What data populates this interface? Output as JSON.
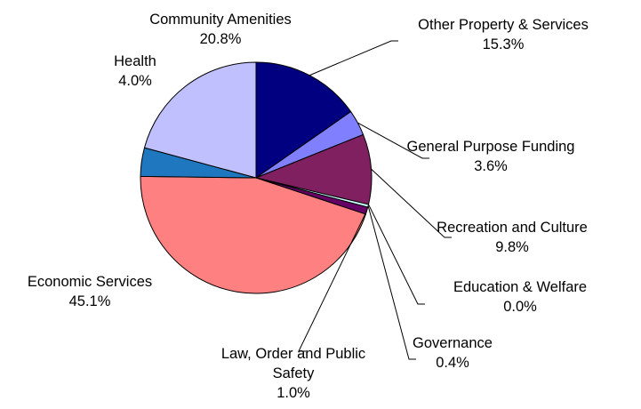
{
  "chart_data": {
    "type": "pie",
    "title": "",
    "slices": [
      {
        "label": "Other Property & Services",
        "value": 15.3,
        "value_label": "15.3%",
        "color": "#000080"
      },
      {
        "label": "General Purpose Funding",
        "value": 3.6,
        "value_label": "3.6%",
        "color": "#8080FF"
      },
      {
        "label": "Recreation and Culture",
        "value": 9.8,
        "value_label": "9.8%",
        "color": "#802060"
      },
      {
        "label": "Education & Welfare",
        "value": 0.0,
        "value_label": "0.0%",
        "color": "#FFFFCC"
      },
      {
        "label": "Governance",
        "value": 0.4,
        "value_label": "0.4%",
        "color": "#CCFFFF"
      },
      {
        "label": "Law, Order and Public Safety",
        "value": 1.0,
        "value_label": "1.0%",
        "color": "#660066"
      },
      {
        "label": "Economic Services",
        "value": 45.1,
        "value_label": "45.1%",
        "color": "#FF8080"
      },
      {
        "label": "Health",
        "value": 4.0,
        "value_label": "4.0%",
        "color": "#1F77C0"
      },
      {
        "label": "Community Amenities",
        "value": 20.8,
        "value_label": "20.8%",
        "color": "#C0C0FF"
      }
    ],
    "start_angle": "12 o'clock",
    "direction": "clockwise",
    "legend": "none"
  }
}
